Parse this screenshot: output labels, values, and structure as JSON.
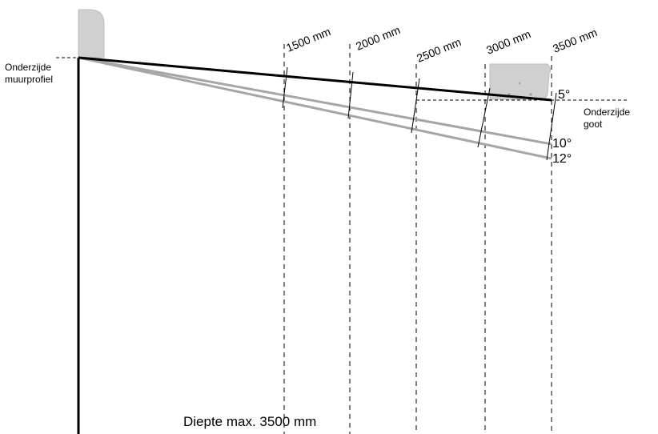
{
  "diagram": {
    "wall_label_line1": "Onderzijde",
    "wall_label_line2": "muurprofiel",
    "gutter_label_line1": "Onderzijde",
    "gutter_label_line2": "goot",
    "depth_label": "Diepte max. 3500 mm",
    "distance_marks": [
      "1500 mm",
      "2000 mm",
      "2500 mm",
      "3000 mm",
      "3500 mm"
    ],
    "angles": [
      "5°",
      "10°",
      "12°"
    ],
    "colors": {
      "main_line": "#000000",
      "angle_lines": "#a6a6a6",
      "profile_fill": "#d0d0d0",
      "profile_stroke": "#bdbdbd"
    }
  }
}
